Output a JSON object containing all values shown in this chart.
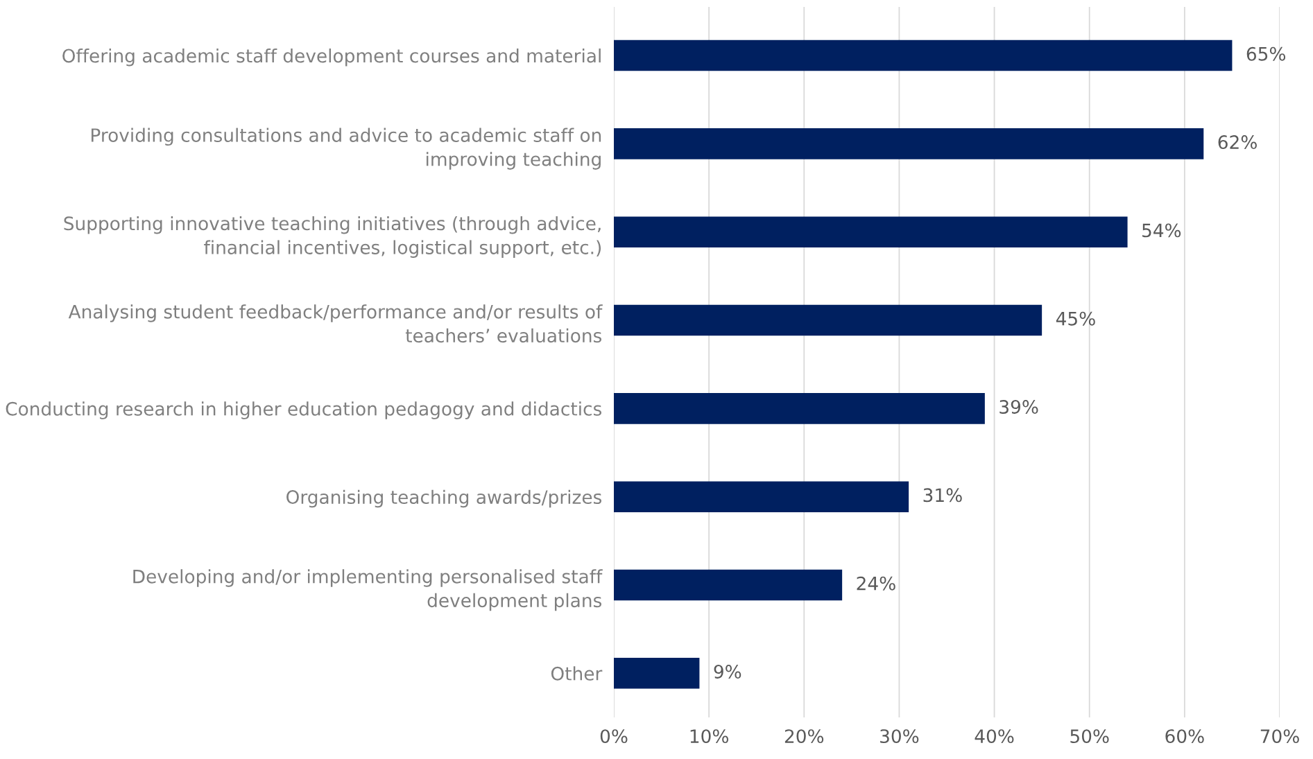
{
  "chart_data": {
    "type": "bar",
    "orientation": "horizontal",
    "categories": [
      "Offering academic staff development courses and material",
      "Providing consultations and advice to academic staff on\nimproving teaching",
      "Supporting innovative teaching initiatives (through advice,\nfinancial incentives, logistical support, etc.)",
      "Analysing student feedback/performance and/or results of\nteachers’ evaluations",
      "Conducting research in higher education pedagogy and didactics",
      "Organising teaching awards/prizes",
      "Developing and/or implementing personalised staff\ndevelopment plans",
      "Other"
    ],
    "values": [
      65,
      62,
      54,
      45,
      39,
      31,
      24,
      9
    ],
    "value_labels": [
      "65%",
      "62%",
      "54%",
      "45%",
      "39%",
      "31%",
      "24%",
      "9%"
    ],
    "color": "#002060",
    "xlim": [
      0,
      70
    ],
    "xticks": [
      {
        "value": 0,
        "label": "0%"
      },
      {
        "value": 10,
        "label": "10%"
      },
      {
        "value": 20,
        "label": "20%"
      },
      {
        "value": 30,
        "label": "30%"
      },
      {
        "value": 40,
        "label": "40%"
      },
      {
        "value": 50,
        "label": "50%"
      },
      {
        "value": 60,
        "label": "60%"
      },
      {
        "value": 70,
        "label": "70%"
      }
    ],
    "grid": "x"
  }
}
